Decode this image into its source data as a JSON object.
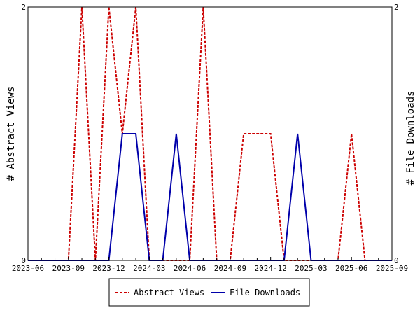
{
  "chart_data": {
    "type": "line",
    "x": [
      "2023-06",
      "2023-07",
      "2023-08",
      "2023-09",
      "2023-10",
      "2023-11",
      "2023-12",
      "2024-01",
      "2024-02",
      "2024-03",
      "2024-04",
      "2024-05",
      "2024-06",
      "2024-07",
      "2024-08",
      "2024-09",
      "2024-10",
      "2024-11",
      "2024-12",
      "2025-01",
      "2025-02",
      "2025-03",
      "2025-04",
      "2025-05",
      "2025-06",
      "2025-07",
      "2025-08",
      "2025-09"
    ],
    "x_ticks": [
      "2023-06",
      "2023-09",
      "2023-12",
      "2024-03",
      "2024-06",
      "2024-09",
      "2024-12",
      "2025-03",
      "2025-06",
      "2025-09"
    ],
    "series": [
      {
        "name": "Abstract Views",
        "axis": "left",
        "color": "#cc0000",
        "dash": "dashed",
        "values": [
          0,
          0,
          0,
          0,
          2,
          0,
          2,
          1,
          2,
          0,
          0,
          0,
          0,
          2,
          0,
          0,
          1,
          1,
          1,
          0,
          0,
          0,
          0,
          0,
          1,
          0,
          0,
          0
        ]
      },
      {
        "name": "File Downloads",
        "axis": "right",
        "color": "#0000aa",
        "dash": "solid",
        "values": [
          0,
          0,
          0,
          0,
          0,
          0,
          0,
          1,
          1,
          0,
          0,
          1,
          0,
          0,
          0,
          0,
          0,
          0,
          0,
          0,
          1,
          0,
          0,
          0,
          0,
          0,
          0,
          0
        ]
      }
    ],
    "ylabel_left": "# Abstract Views",
    "ylabel_right": "# File Downloads",
    "ylim_left": [
      0,
      2
    ],
    "ylim_right": [
      0,
      2
    ],
    "yticks_left": [
      "0",
      "2"
    ],
    "yticks_right": [
      "0",
      "2"
    ],
    "grid": false,
    "legend_position": "bottom-center"
  }
}
